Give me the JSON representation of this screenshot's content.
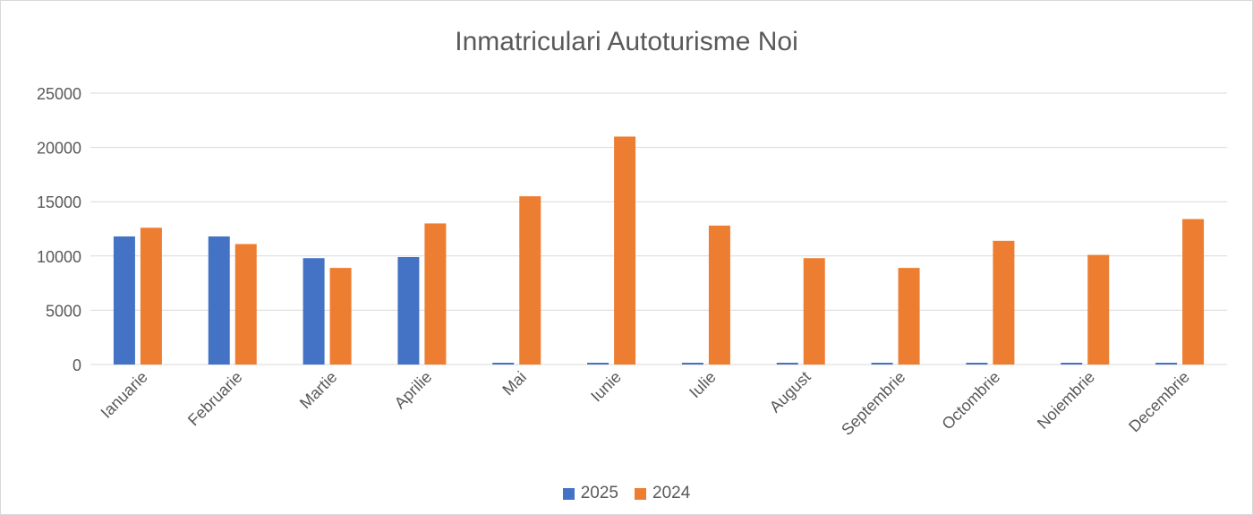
{
  "chart_data": {
    "type": "bar",
    "title": "Inmatriculari Autoturisme Noi",
    "xlabel": "",
    "ylabel": "",
    "ylim": [
      0,
      25000
    ],
    "yticks": [
      0,
      5000,
      10000,
      15000,
      20000,
      25000
    ],
    "grid": true,
    "legend_position": "bottom",
    "categories": [
      "Ianuarie",
      "Februarie",
      "Martie",
      "Aprilie",
      "Mai",
      "Iunie",
      "Iulie",
      "August",
      "Septembrie",
      "Octombrie",
      "Noiembrie",
      "Decembrie"
    ],
    "series": [
      {
        "name": "2025",
        "color": "#4472c4",
        "values": [
          11800,
          11800,
          9800,
          9900,
          0,
          0,
          0,
          0,
          0,
          0,
          0,
          0
        ]
      },
      {
        "name": "2024",
        "color": "#ed7d31",
        "values": [
          12600,
          11100,
          8900,
          13000,
          15500,
          21000,
          12800,
          9800,
          8900,
          11400,
          10100,
          13400
        ]
      }
    ]
  }
}
